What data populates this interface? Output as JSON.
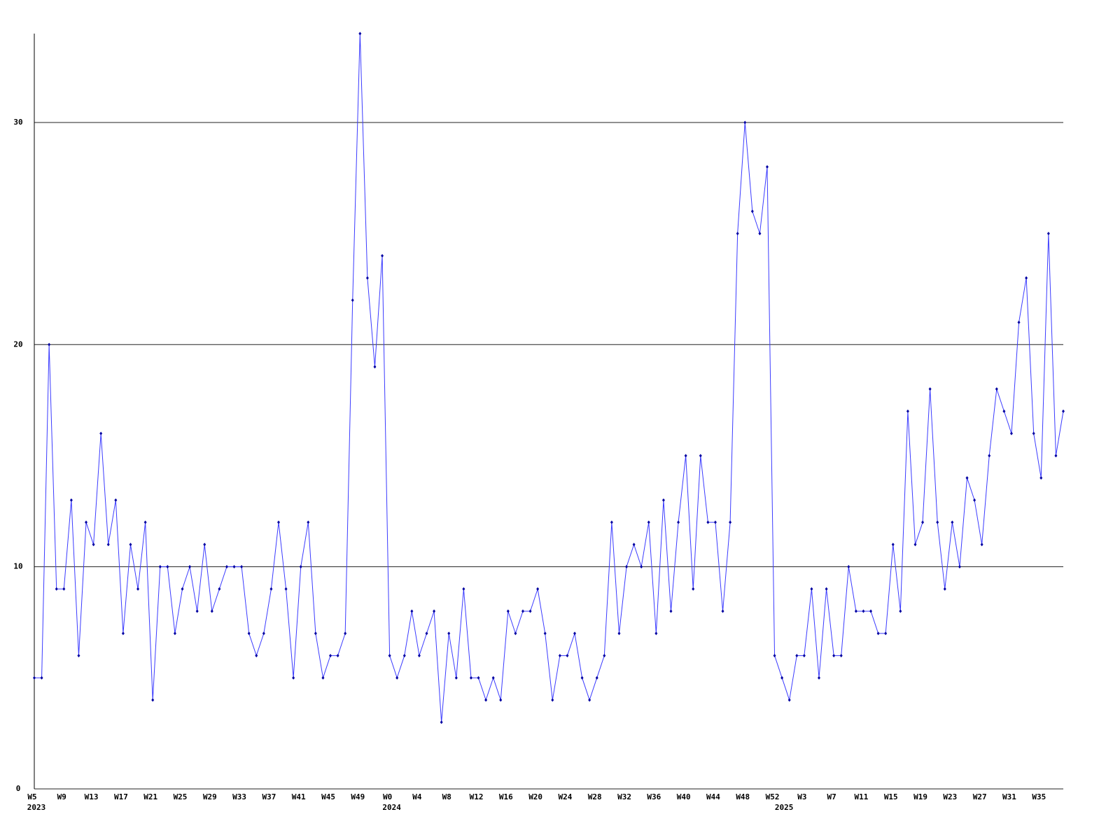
{
  "chart_data": {
    "type": "line",
    "categories": [
      "W5",
      null,
      null,
      null,
      "W9",
      null,
      null,
      null,
      "W13",
      null,
      null,
      null,
      "W17",
      null,
      null,
      null,
      "W21",
      null,
      null,
      null,
      "W25",
      null,
      null,
      null,
      "W29",
      null,
      null,
      null,
      "W33",
      null,
      null,
      null,
      "W37",
      null,
      null,
      null,
      "W41",
      null,
      null,
      null,
      "W45",
      null,
      null,
      null,
      "W49",
      null,
      null,
      null,
      "W0",
      null,
      null,
      null,
      "W4",
      null,
      null,
      null,
      "W8",
      null,
      null,
      null,
      "W12",
      null,
      null,
      null,
      "W16",
      null,
      null,
      null,
      "W20",
      null,
      null,
      null,
      "W24",
      null,
      null,
      null,
      "W28",
      null,
      null,
      null,
      "W32",
      null,
      null,
      null,
      "W36",
      null,
      null,
      null,
      "W40",
      null,
      null,
      null,
      "W44",
      null,
      null,
      null,
      "W48",
      null,
      null,
      null,
      "W52",
      null,
      null,
      null,
      "W3",
      null,
      null,
      null,
      "W7",
      null,
      null,
      null,
      "W11",
      null,
      null,
      null,
      "W15",
      null,
      null,
      null,
      "W19",
      null,
      null,
      null,
      "W23",
      null,
      null,
      null,
      "W27",
      null,
      null,
      null,
      "W31",
      null,
      null,
      null,
      "W35",
      null,
      null,
      null
    ],
    "category_years": [
      "2023",
      null,
      null,
      null,
      null,
      null,
      null,
      null,
      null,
      null,
      null,
      null,
      null,
      null,
      null,
      null,
      null,
      null,
      null,
      null,
      null,
      null,
      null,
      null,
      null,
      null,
      null,
      null,
      null,
      null,
      null,
      null,
      null,
      null,
      null,
      null,
      null,
      null,
      null,
      null,
      null,
      null,
      null,
      null,
      null,
      null,
      null,
      null,
      "2024",
      null,
      null,
      null,
      null,
      null,
      null,
      null,
      null,
      null,
      null,
      null,
      null,
      null,
      null,
      null,
      null,
      null,
      null,
      null,
      null,
      null,
      null,
      null,
      null,
      null,
      null,
      null,
      null,
      null,
      null,
      null,
      null,
      null,
      null,
      null,
      null,
      null,
      null,
      null,
      null,
      null,
      null,
      null,
      null,
      null,
      null,
      null,
      null,
      null,
      null,
      null,
      null,
      "2025",
      null,
      null,
      null,
      null,
      null,
      null,
      null,
      null,
      null,
      null,
      null,
      null,
      null,
      null,
      null,
      null,
      null,
      null,
      null,
      null,
      null,
      null,
      null,
      null,
      null,
      null,
      null,
      null,
      null,
      null,
      null,
      null,
      null,
      null,
      null,
      null,
      null,
      null
    ],
    "series": [
      {
        "color": "#3b3bff",
        "marker_color": "#0000a0",
        "values": [
          5,
          5,
          20,
          9,
          9,
          13,
          6,
          12,
          11,
          16,
          11,
          13,
          7,
          11,
          9,
          12,
          4,
          10,
          10,
          7,
          9,
          10,
          8,
          11,
          8,
          9,
          10,
          10,
          10,
          7,
          6,
          7,
          9,
          12,
          9,
          5,
          10,
          12,
          7,
          5,
          6,
          6,
          7,
          22,
          34,
          23,
          19,
          24,
          6,
          5,
          6,
          8,
          6,
          7,
          8,
          3,
          7,
          5,
          9,
          5,
          5,
          4,
          5,
          4,
          8,
          7,
          8,
          8,
          9,
          7,
          4,
          6,
          6,
          7,
          5,
          4,
          5,
          6,
          12,
          7,
          10,
          11,
          10,
          12,
          7,
          13,
          8,
          12,
          15,
          9,
          15,
          12,
          12,
          8,
          12,
          25,
          30,
          26,
          25,
          28,
          6,
          5,
          4,
          6,
          6,
          9,
          5,
          9,
          6,
          6,
          10,
          8,
          8,
          8,
          7,
          7,
          11,
          8,
          17,
          11,
          12,
          18,
          12,
          9,
          12,
          10,
          14,
          13,
          11,
          15,
          18,
          17,
          16,
          21,
          23,
          16,
          14,
          25,
          15,
          17
        ]
      }
    ],
    "ylim": [
      0,
      34
    ],
    "yticks": [
      0,
      10,
      20,
      30
    ],
    "grid": true
  }
}
